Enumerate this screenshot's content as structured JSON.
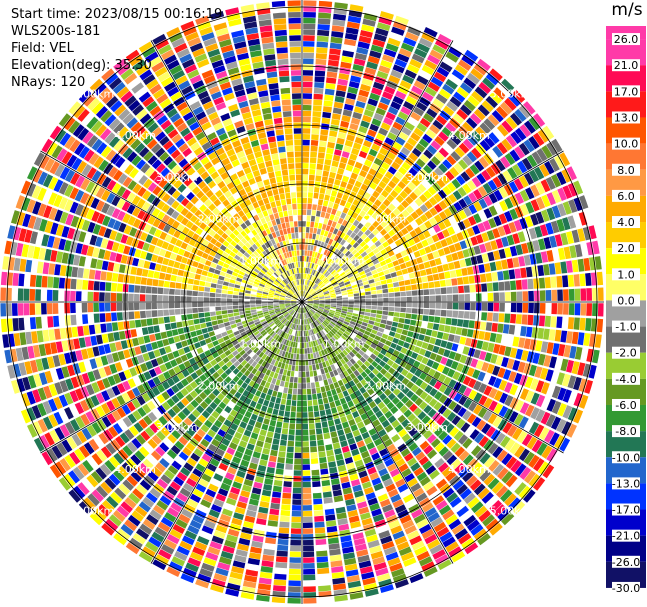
{
  "header": {
    "start_time": "Start time: 2023/08/15 00:16:19",
    "station": "WLS200s-181",
    "field": "Field: VEL",
    "elevation": "Elevation(deg): 35.30",
    "nrays": "NRays: 120"
  },
  "colorbar": {
    "unit": "m/s",
    "ticks": [
      "26.0",
      "21.0",
      "17.0",
      "13.0",
      "10.0",
      "8.0",
      "6.0",
      "4.0",
      "2.0",
      "1.0",
      "0.0",
      "-1.0",
      "-2.0",
      "-4.0",
      "-6.0",
      "-8.0",
      "-10.0",
      "-13.0",
      "-17.0",
      "-21.0",
      "-26.0",
      "-30.0"
    ],
    "colors": [
      "#ff3aa8",
      "#ff0a55",
      "#ff1a1a",
      "#ff5500",
      "#ff7733",
      "#ff9944",
      "#ffaa00",
      "#ffcc00",
      "#ffff00",
      "#ffff66",
      "#a0a0a0",
      "#707070",
      "#99cc33",
      "#669922",
      "#339933",
      "#227755",
      "#2266cc",
      "#0033ff",
      "#0000cc",
      "#000088",
      "#111166"
    ]
  },
  "chart_data": {
    "type": "ppi",
    "field": "VEL",
    "units": "m/s",
    "elevation_deg": 35.3,
    "n_rays": 120,
    "range_ring_labels": [
      "1.00km",
      "2.00km",
      "3.00km",
      "4.00km",
      "5.00km"
    ],
    "sector_summary": [
      {
        "azimuth_range": "north, inner 0-2.5km",
        "typical_velocity": "2.0 to 6.0"
      },
      {
        "azimuth_range": "west/east near 0 deg azimuth line",
        "typical_velocity": "-1.0 to 1.0"
      },
      {
        "azimuth_range": "south, inner 0-2.5km",
        "typical_velocity": "-2.0 to -8.0"
      },
      {
        "azimuth_range": "outer ranges beyond 3km",
        "typical_velocity": "noise, full scale -30.0 to 26.0"
      }
    ]
  }
}
